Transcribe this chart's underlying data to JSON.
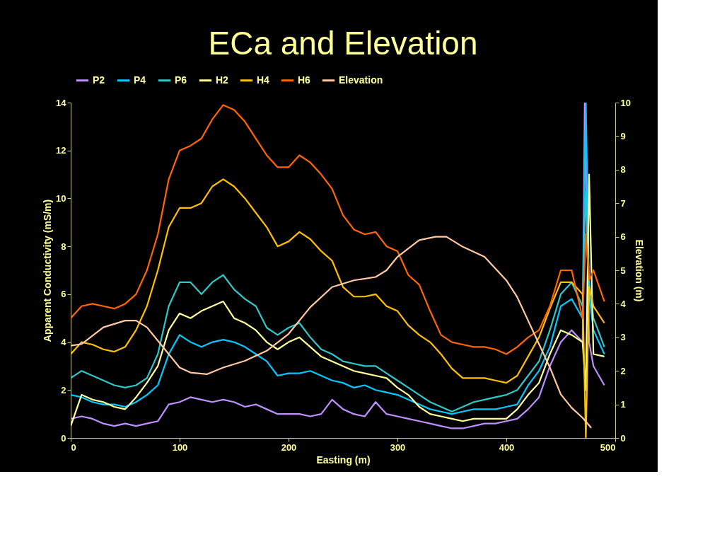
{
  "chart_data": {
    "type": "line",
    "title": "ECa and Elevation",
    "xlabel": "Easting (m)",
    "ylabel": "Apparent Conductivity (mS/m)",
    "y2label": "Elevation (m)",
    "x": [
      0,
      10,
      20,
      30,
      40,
      50,
      60,
      70,
      80,
      90,
      100,
      110,
      120,
      130,
      140,
      150,
      160,
      170,
      180,
      190,
      200,
      210,
      220,
      230,
      240,
      250,
      260,
      270,
      280,
      290,
      300,
      310,
      320,
      330,
      340,
      350,
      360,
      370,
      380,
      390,
      400,
      410,
      420,
      430,
      440,
      450,
      460,
      470,
      473,
      476,
      480,
      490
    ],
    "xlim": [
      0,
      500
    ],
    "xticks": [
      0,
      100,
      200,
      300,
      400,
      500
    ],
    "ylim": [
      0,
      14
    ],
    "yticks": [
      0,
      2,
      4,
      6,
      8,
      10,
      12,
      14
    ],
    "y2lim": [
      0,
      10
    ],
    "y2ticks": [
      0,
      1,
      2,
      3,
      4,
      5,
      6,
      7,
      8,
      9,
      10
    ],
    "legend": "top",
    "grid": false,
    "series": [
      {
        "name": "P2",
        "color": "#bf8fff",
        "x": [
          0,
          10,
          20,
          30,
          40,
          50,
          60,
          70,
          80,
          90,
          100,
          110,
          120,
          130,
          140,
          150,
          160,
          170,
          180,
          190,
          200,
          210,
          220,
          230,
          240,
          250,
          260,
          270,
          280,
          290,
          300,
          310,
          320,
          330,
          340,
          350,
          360,
          370,
          380,
          390,
          400,
          410,
          420,
          430,
          440,
          450,
          460,
          470,
          472,
          476,
          480,
          490
        ],
        "values": [
          0.8,
          0.9,
          0.8,
          0.6,
          0.5,
          0.6,
          0.5,
          0.6,
          0.7,
          1.4,
          1.5,
          1.7,
          1.6,
          1.5,
          1.6,
          1.5,
          1.3,
          1.4,
          1.2,
          1.0,
          1.0,
          1.0,
          0.9,
          1.0,
          1.6,
          1.2,
          1.0,
          0.9,
          1.5,
          1.0,
          0.9,
          0.8,
          0.7,
          0.6,
          0.5,
          0.4,
          0.4,
          0.5,
          0.6,
          0.6,
          0.7,
          0.8,
          1.2,
          1.7,
          3.0,
          4.0,
          4.5,
          4.0,
          14,
          4.0,
          3.0,
          2.2
        ]
      },
      {
        "name": "P4",
        "color": "#00c8ff",
        "values": [
          1.8,
          1.7,
          1.5,
          1.4,
          1.4,
          1.3,
          1.5,
          1.8,
          2.2,
          3.5,
          4.3,
          4.0,
          3.8,
          4.0,
          4.1,
          4.0,
          3.8,
          3.5,
          3.2,
          2.6,
          2.7,
          2.7,
          2.8,
          2.6,
          2.4,
          2.3,
          2.1,
          2.2,
          2.0,
          1.9,
          1.8,
          1.6,
          1.4,
          1.2,
          1.1,
          1.0,
          1.1,
          1.2,
          1.2,
          1.2,
          1.3,
          1.4,
          2.2,
          2.8,
          3.8,
          5.5,
          5.8,
          5.0,
          14,
          6.0,
          4.5,
          3.5
        ]
      },
      {
        "name": "P6",
        "color": "#2ec8c8",
        "values": [
          2.5,
          2.8,
          2.6,
          2.4,
          2.2,
          2.1,
          2.2,
          2.5,
          3.5,
          5.5,
          6.5,
          6.5,
          6.0,
          6.5,
          6.8,
          6.2,
          5.8,
          5.5,
          4.6,
          4.3,
          4.6,
          4.8,
          4.2,
          3.7,
          3.5,
          3.2,
          3.1,
          3.0,
          3.0,
          2.7,
          2.4,
          2.1,
          1.8,
          1.5,
          1.3,
          1.1,
          1.3,
          1.5,
          1.6,
          1.7,
          1.8,
          2.0,
          2.6,
          3.2,
          4.5,
          6.0,
          6.5,
          5.5,
          10.3,
          6.5,
          5.0,
          3.8
        ]
      },
      {
        "name": "H2",
        "color": "#ffff99",
        "values": [
          0.5,
          1.8,
          1.6,
          1.5,
          1.3,
          1.2,
          1.7,
          2.3,
          3.0,
          4.5,
          5.2,
          5.0,
          5.3,
          5.5,
          5.7,
          5.0,
          4.8,
          4.5,
          4.0,
          3.7,
          4.0,
          4.2,
          3.8,
          3.4,
          3.2,
          3.0,
          2.8,
          2.7,
          2.6,
          2.5,
          2.1,
          1.8,
          1.3,
          1.0,
          0.9,
          0.8,
          0.7,
          0.8,
          0.8,
          0.8,
          0.8,
          1.2,
          1.8,
          2.3,
          3.5,
          4.5,
          4.3,
          4.0,
          2.0,
          11.0,
          3.5,
          3.4
        ]
      },
      {
        "name": "H4",
        "color": "#ffc000",
        "values": [
          3.5,
          4.0,
          3.9,
          3.7,
          3.6,
          3.8,
          4.5,
          5.5,
          7.0,
          8.8,
          9.6,
          9.6,
          9.8,
          10.5,
          10.8,
          10.5,
          10.0,
          9.4,
          8.8,
          8.0,
          8.2,
          8.6,
          8.3,
          7.8,
          7.4,
          6.3,
          5.9,
          5.9,
          6.0,
          5.5,
          5.3,
          4.7,
          4.3,
          4.0,
          3.5,
          2.9,
          2.5,
          2.5,
          2.5,
          2.4,
          2.3,
          2.6,
          3.4,
          4.2,
          5.4,
          6.5,
          6.5,
          6.0,
          0,
          6.3,
          5.5,
          4.8
        ]
      },
      {
        "name": "H6",
        "color": "#ff6600",
        "values": [
          5.0,
          5.5,
          5.6,
          5.5,
          5.4,
          5.6,
          6.0,
          7.0,
          8.5,
          10.8,
          12.0,
          12.2,
          12.5,
          13.3,
          13.9,
          13.7,
          13.2,
          12.5,
          11.8,
          11.3,
          11.3,
          11.8,
          11.5,
          11.0,
          10.4,
          9.3,
          8.7,
          8.5,
          8.6,
          8.0,
          7.8,
          6.8,
          6.4,
          5.3,
          4.3,
          4.0,
          3.9,
          3.8,
          3.8,
          3.7,
          3.5,
          3.8,
          4.2,
          4.5,
          5.5,
          7.0,
          7.0,
          5.0,
          8.5,
          6.6,
          7.0,
          5.7
        ]
      },
      {
        "name": "Elevation",
        "color": "#ffc8a0",
        "axis": "y2",
        "x": [
          0,
          10,
          30,
          50,
          60,
          70,
          80,
          90,
          100,
          110,
          125,
          140,
          160,
          180,
          200,
          220,
          240,
          260,
          280,
          290,
          300,
          320,
          335,
          345,
          360,
          380,
          400,
          410,
          420,
          430,
          440,
          450,
          460,
          470,
          478
        ],
        "values": [
          2.75,
          2.8,
          3.3,
          3.5,
          3.5,
          3.3,
          2.9,
          2.5,
          2.1,
          1.95,
          1.9,
          2.1,
          2.3,
          2.6,
          3.1,
          3.9,
          4.5,
          4.7,
          4.8,
          5.0,
          5.4,
          5.9,
          6.0,
          6.0,
          5.7,
          5.4,
          4.7,
          4.2,
          3.5,
          2.8,
          2.1,
          1.3,
          0.9,
          0.6,
          0.3
        ]
      }
    ]
  }
}
